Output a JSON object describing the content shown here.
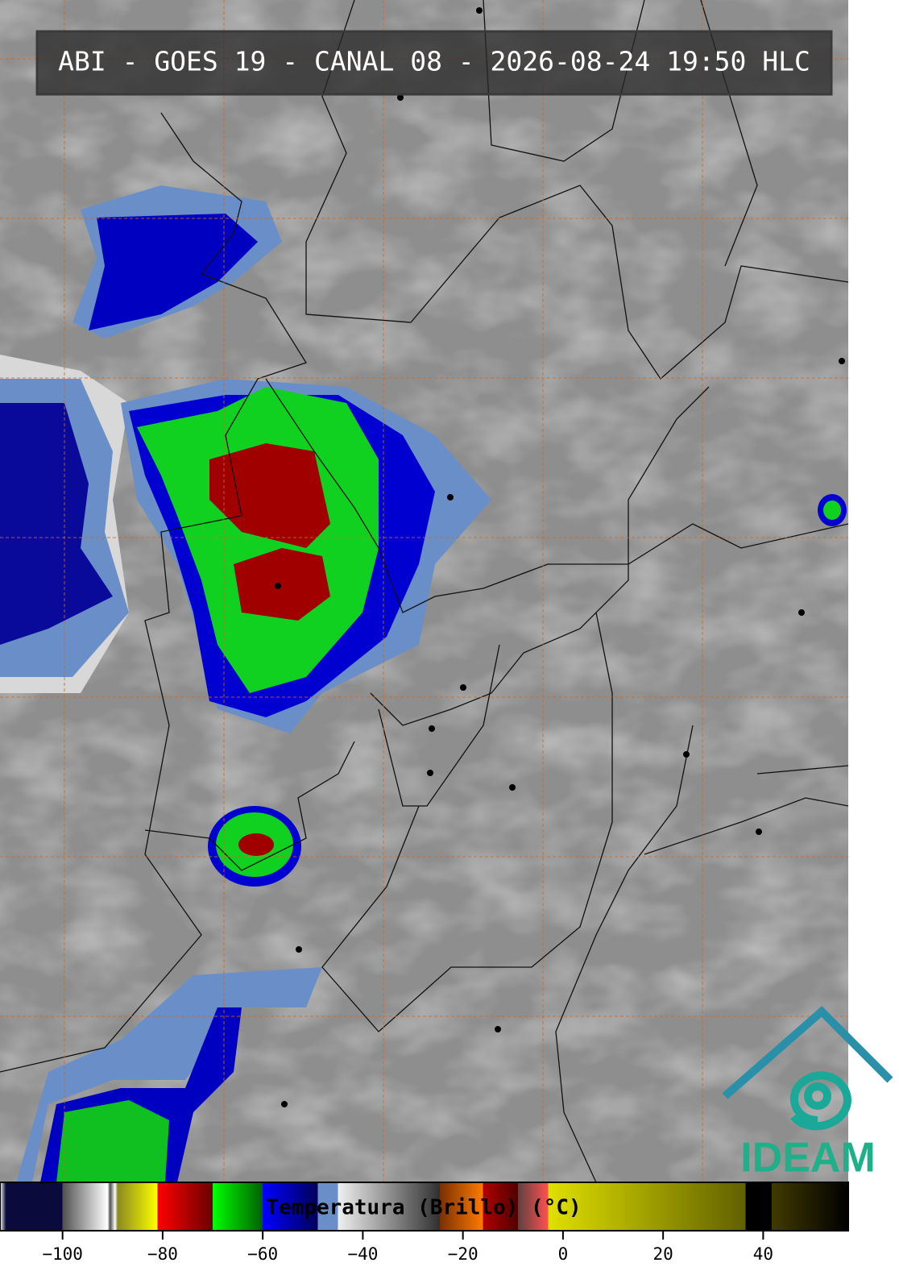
{
  "title": "ABI - GOES 19 - CANAL 08 - 2026-08-24 19:50 HLC",
  "logo": "IDEAM",
  "colorbar": {
    "label": "Temperatura (Brillo) (°C)",
    "lim": [
      -112.5,
      57
    ],
    "ticks": [
      {
        "value": -100,
        "label": "−100"
      },
      {
        "value": -80,
        "label": "−80"
      },
      {
        "value": -60,
        "label": "−60"
      },
      {
        "value": -40,
        "label": "−40"
      },
      {
        "value": -20,
        "label": "−20"
      },
      0,
      20,
      40
    ],
    "scale": [
      {
        "value": -112.5,
        "color": "#ffffff"
      },
      {
        "value": -111.3,
        "color": "#0a0a3c"
      },
      {
        "value": -100,
        "color": "#0a0a3c"
      },
      {
        "value": -100,
        "color": "#505050"
      },
      {
        "value": -91,
        "color": "#ffffff"
      },
      {
        "value": -90.5,
        "color": "#505050"
      },
      {
        "value": -89.5,
        "color": "#ffffff"
      },
      {
        "value": -89,
        "color": "#8a8a20"
      },
      {
        "value": -81,
        "color": "#ffff00"
      },
      {
        "value": -81,
        "color": "#ff0000"
      },
      {
        "value": -70,
        "color": "#6a0000"
      },
      {
        "value": -70,
        "color": "#00ff00"
      },
      {
        "value": -60,
        "color": "#006000"
      },
      {
        "value": -60,
        "color": "#0000ff"
      },
      {
        "value": -49,
        "color": "#00005a"
      },
      {
        "value": -49,
        "color": "#6a8fc8"
      },
      {
        "value": -45,
        "color": "#6a8fc8"
      },
      {
        "value": -45,
        "color": "#f0f0f0"
      },
      {
        "value": -24.6,
        "color": "#303030"
      },
      {
        "value": -24.6,
        "color": "#7a3000"
      },
      {
        "value": -16,
        "color": "#ff7a00"
      },
      {
        "value": -16,
        "color": "#b00000"
      },
      {
        "value": -9,
        "color": "#500000"
      },
      {
        "value": -9,
        "color": "#604040"
      },
      {
        "value": -3,
        "color": "#ff5050"
      },
      {
        "value": -3,
        "color": "#e0e000"
      },
      {
        "value": 36.5,
        "color": "#606000"
      },
      {
        "value": 36.5,
        "color": "#000000"
      },
      {
        "value": 41.7,
        "color": "#000000"
      },
      {
        "value": 41.7,
        "color": "#403a00"
      },
      {
        "value": 57,
        "color": "#000000"
      }
    ]
  }
}
